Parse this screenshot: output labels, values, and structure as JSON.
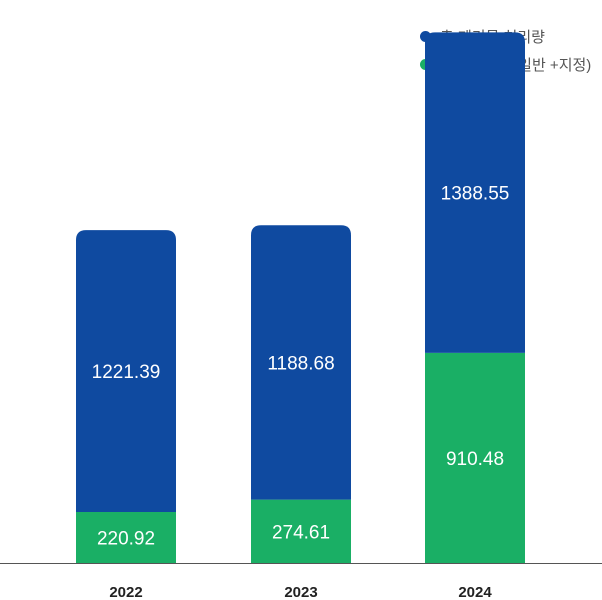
{
  "chart_data": {
    "type": "bar",
    "stacked": true,
    "categories": [
      "2022",
      "2023",
      "2024"
    ],
    "series": [
      {
        "name": "총 재활용량(일반 +지정)",
        "color": "#1aaf65",
        "values": [
          220.92,
          274.61,
          910.48
        ]
      },
      {
        "name": "총 폐기물 처리량",
        "color": "#0f4aa0",
        "values": [
          1221.39,
          1188.68,
          1388.55
        ]
      }
    ],
    "legend_order": [
      1,
      0
    ],
    "legend_position": "top-right",
    "grid": false
  }
}
